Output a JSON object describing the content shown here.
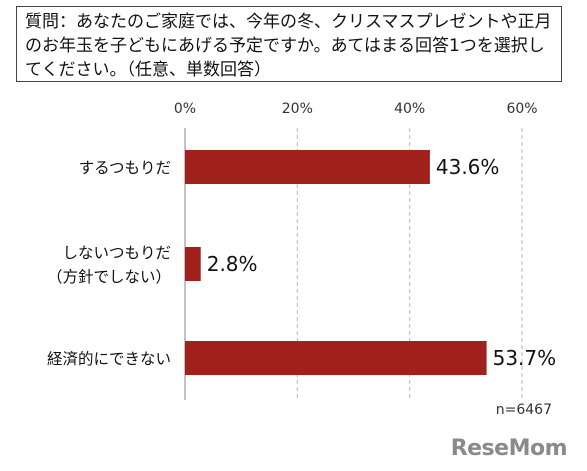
{
  "question": "質問：あなたのご家庭では、今年の冬、クリスマスプレゼントや正月のお年玉を子どもにあげる予定ですか。あてはまる回答1つを選択してください。（任意、単数回答）",
  "sample_size": "n=6467",
  "logo_text": "ReseMom",
  "colors": {
    "bar": "#a0201b",
    "grid": "#b8b8b8",
    "axis": "#999999"
  },
  "chart_data": {
    "type": "bar",
    "orientation": "horizontal",
    "categories": [
      [
        "するつもりだ"
      ],
      [
        "しないつもりだ",
        "（方針でしない）"
      ],
      [
        "経済的にできない"
      ]
    ],
    "values": [
      43.6,
      2.8,
      53.7
    ],
    "value_labels": [
      "43.6%",
      "2.8%",
      "53.7%"
    ],
    "xlim": [
      0,
      60
    ],
    "ticks": [
      0,
      20,
      40,
      60
    ],
    "tick_labels": [
      "0%",
      "20%",
      "40%",
      "60%"
    ],
    "grid": true,
    "title": "",
    "xlabel": "",
    "ylabel": ""
  }
}
